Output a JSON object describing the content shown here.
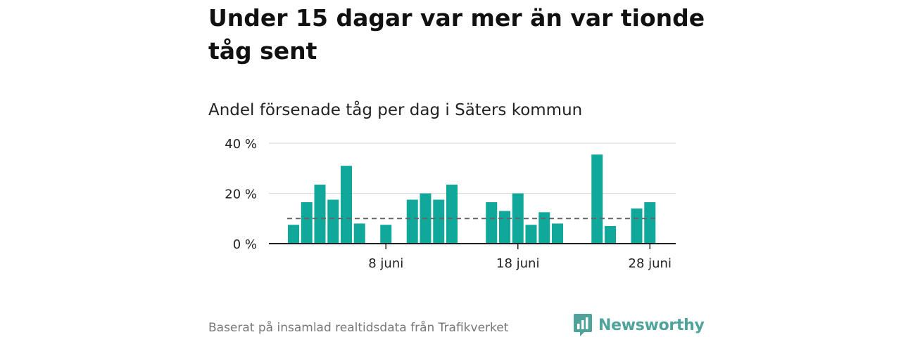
{
  "title": "Under 15 dagar var mer än var tionde tåg sent",
  "subtitle": "Andel försenade tåg per dag i Säters kommun",
  "source": "Baserat på insamlad realtidsdata från Trafikverket",
  "brand": {
    "name": "Newsworthy",
    "icon": "newsworthy-logo-icon"
  },
  "colors": {
    "bar": "#10a89a",
    "reference_line": "#666666",
    "grid": "#dddddd",
    "axis": "#222222"
  },
  "chart_data": {
    "type": "bar",
    "x": [
      "2021-06-01",
      "2021-06-02",
      "2021-06-03",
      "2021-06-04",
      "2021-06-05",
      "2021-06-06",
      "2021-06-07",
      "2021-06-08",
      "2021-06-09",
      "2021-06-10",
      "2021-06-11",
      "2021-06-12",
      "2021-06-13",
      "2021-06-14",
      "2021-06-15",
      "2021-06-16",
      "2021-06-17",
      "2021-06-18",
      "2021-06-19",
      "2021-06-20",
      "2021-06-21",
      "2021-06-22",
      "2021-06-23",
      "2021-06-24",
      "2021-06-25",
      "2021-06-26",
      "2021-06-27",
      "2021-06-28",
      "2021-06-29",
      "2021-06-30"
    ],
    "values": [
      7.5,
      16.5,
      23.5,
      17.5,
      31,
      8,
      0,
      7.5,
      0,
      17.5,
      20,
      17.5,
      23.5,
      0,
      0,
      16.5,
      13,
      20,
      7.5,
      12.5,
      8,
      0,
      0,
      35.5,
      7,
      0,
      14,
      16.5,
      null,
      null
    ],
    "reference_value": 10,
    "ylim": [
      0,
      40
    ],
    "y_ticks": [
      0,
      20,
      40
    ],
    "y_tick_labels": [
      "0 %",
      "20 %",
      "40 %"
    ],
    "x_ticks": [
      "2021-06-08",
      "2021-06-18",
      "2021-06-28"
    ],
    "x_tick_labels": [
      "8 juni",
      "18 juni",
      "28 juni"
    ],
    "grid": true
  }
}
